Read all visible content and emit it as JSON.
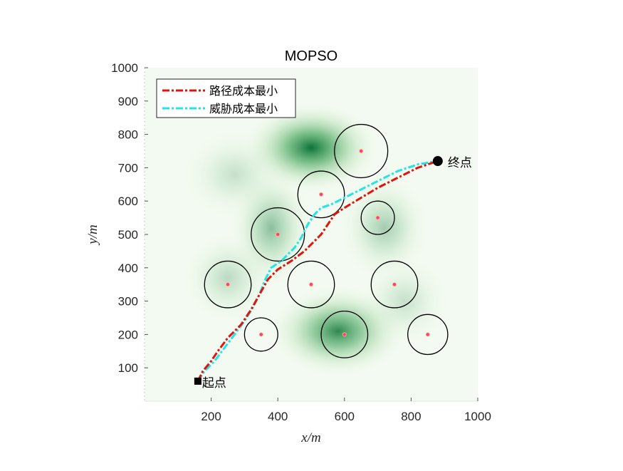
{
  "chart_data": {
    "type": "line",
    "title": "MOPSO",
    "xlabel": "x/m",
    "ylabel": "y/m",
    "xlim": [
      0,
      1000
    ],
    "ylim": [
      0,
      1000
    ],
    "xticks": [
      200,
      400,
      600,
      800,
      1000
    ],
    "yticks": [
      100,
      200,
      300,
      400,
      500,
      600,
      700,
      800,
      900,
      1000
    ],
    "legend_position": "top-left",
    "start": {
      "label": "起点",
      "x": 160,
      "y": 60
    },
    "end": {
      "label": "终点",
      "x": 880,
      "y": 720
    },
    "threats": [
      {
        "x": 650,
        "y": 750,
        "r": 80
      },
      {
        "x": 530,
        "y": 620,
        "r": 70
      },
      {
        "x": 700,
        "y": 550,
        "r": 50
      },
      {
        "x": 400,
        "y": 500,
        "r": 80
      },
      {
        "x": 250,
        "y": 350,
        "r": 70
      },
      {
        "x": 500,
        "y": 350,
        "r": 70
      },
      {
        "x": 750,
        "y": 350,
        "r": 70
      },
      {
        "x": 350,
        "y": 200,
        "r": 50
      },
      {
        "x": 600,
        "y": 200,
        "r": 70
      },
      {
        "x": 850,
        "y": 200,
        "r": 60
      }
    ],
    "terrain_peaks": [
      {
        "x": 500,
        "y": 760,
        "sx": 90,
        "sy": 60,
        "a": 1.0
      },
      {
        "x": 580,
        "y": 210,
        "sx": 90,
        "sy": 60,
        "a": 0.85
      },
      {
        "x": 380,
        "y": 520,
        "sx": 55,
        "sy": 80,
        "a": 0.45
      },
      {
        "x": 720,
        "y": 520,
        "sx": 60,
        "sy": 70,
        "a": 0.35
      },
      {
        "x": 270,
        "y": 680,
        "sx": 70,
        "sy": 60,
        "a": 0.2
      },
      {
        "x": 250,
        "y": 370,
        "sx": 60,
        "sy": 60,
        "a": 0.25
      },
      {
        "x": 780,
        "y": 300,
        "sx": 60,
        "sy": 60,
        "a": 0.2
      }
    ],
    "series": [
      {
        "name": "路径成本最小",
        "color": "#e3120b",
        "x": [
          160,
          175,
          200,
          220,
          250,
          290,
          320,
          345,
          370,
          400,
          440,
          480,
          500,
          530,
          550,
          570,
          600,
          650,
          700,
          760,
          820,
          880
        ],
        "y": [
          60,
          90,
          120,
          150,
          190,
          230,
          275,
          320,
          365,
          395,
          420,
          450,
          470,
          500,
          530,
          560,
          580,
          610,
          640,
          670,
          700,
          720
        ]
      },
      {
        "name": "威胁成本最小",
        "color": "#22e6e6",
        "x": [
          160,
          180,
          210,
          240,
          270,
          300,
          325,
          345,
          360,
          380,
          410,
          430,
          450,
          470,
          490,
          510,
          530,
          560,
          600,
          650,
          700,
          760,
          820,
          880
        ],
        "y": [
          60,
          90,
          120,
          160,
          200,
          240,
          280,
          320,
          360,
          400,
          420,
          440,
          460,
          490,
          530,
          560,
          580,
          590,
          610,
          635,
          660,
          690,
          710,
          720
        ]
      }
    ]
  }
}
